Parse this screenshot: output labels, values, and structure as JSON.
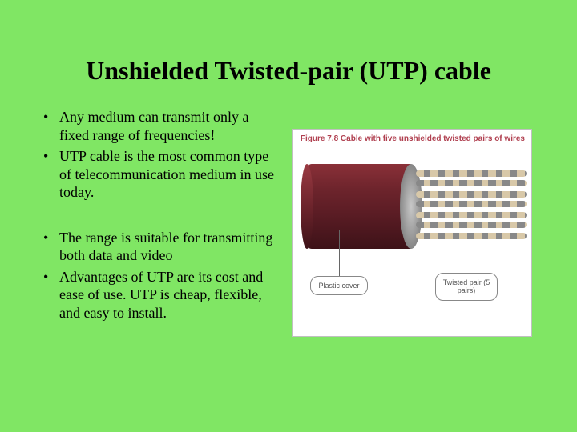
{
  "title": "Unshielded Twisted-pair (UTP) cable",
  "bullets": {
    "b1": "Any medium can transmit only a fixed range of frequencies!",
    "b2": "UTP cable is the most common type of telecommunication medium in use today.",
    "b3": "The range  is suitable for transmitting both data and video",
    "b4": "Advantages of UTP  are its cost and ease of use. UTP is cheap, flexible, and easy to install."
  },
  "figure": {
    "caption": "Figure 7.8  Cable with five unshielded twisted pairs of wires",
    "callout_left": "Plastic cover",
    "callout_right": "Twisted pair (5 pairs)",
    "colors": {
      "jacket_dark": "#5a1c24",
      "jacket_light": "#8a3038",
      "wire_a": "#d8c8a8",
      "wire_b": "#888888",
      "bg": "#ffffff"
    }
  },
  "theme": {
    "background": "#80e664",
    "text": "#000000",
    "title_fontsize_pt": 24,
    "body_fontsize_pt": 14,
    "font_family": "Times New Roman"
  }
}
